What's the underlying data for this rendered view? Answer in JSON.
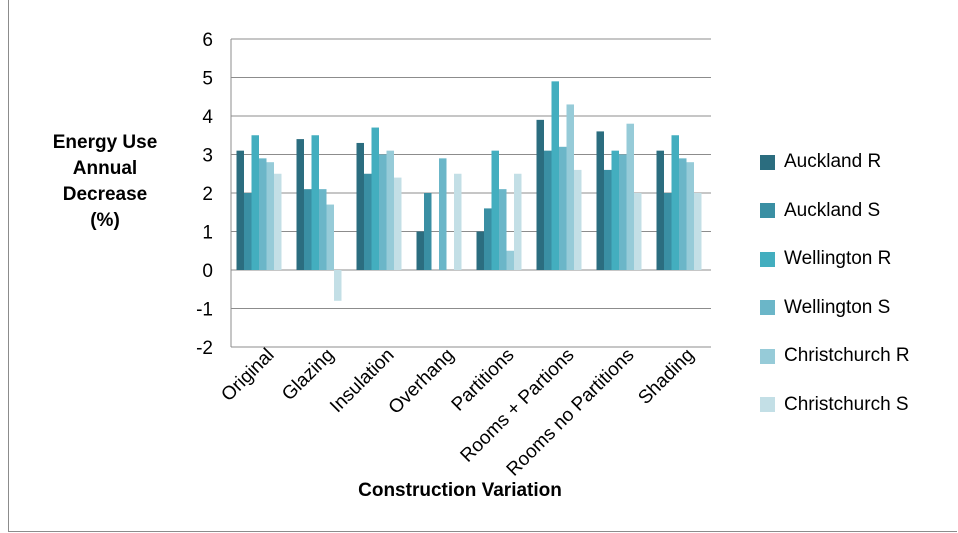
{
  "chart_data": {
    "type": "bar",
    "title": "",
    "xlabel": "Construction Variation",
    "ylabel_lines": [
      "Energy Use",
      "Annual",
      "Decrease",
      "(%)"
    ],
    "ylim": [
      -2,
      6
    ],
    "yticks": [
      "-2",
      "-1",
      "0",
      "1",
      "2",
      "3",
      "4",
      "5",
      "6"
    ],
    "grid": true,
    "legend_position": "right",
    "categories": [
      "Original",
      "Glazing",
      "Insulation",
      "Overhang",
      "Partitions",
      "Rooms + Partions",
      "Rooms no Partitions",
      "Shading"
    ],
    "series": [
      {
        "name": "Auckland R",
        "color": "#2b6d7f",
        "values": [
          3.1,
          3.4,
          3.3,
          1.0,
          1.0,
          3.9,
          3.6,
          3.1
        ]
      },
      {
        "name": "Auckland S",
        "color": "#3a8fa3",
        "values": [
          2.0,
          2.1,
          2.5,
          2.0,
          1.6,
          3.1,
          2.6,
          2.0
        ]
      },
      {
        "name": "Wellington R",
        "color": "#43aebf",
        "values": [
          3.5,
          3.5,
          3.7,
          0,
          3.1,
          4.9,
          3.1,
          3.5
        ]
      },
      {
        "name": "Wellington S",
        "color": "#6bb6c8",
        "values": [
          2.9,
          2.1,
          3.0,
          2.9,
          2.1,
          3.2,
          3.0,
          2.9
        ]
      },
      {
        "name": "Christchurch R",
        "color": "#96cbd8",
        "values": [
          2.8,
          1.7,
          3.1,
          0,
          0.5,
          4.3,
          3.8,
          2.8
        ]
      },
      {
        "name": "Christchurch S",
        "color": "#c3dfe6",
        "values": [
          2.5,
          -0.8,
          2.4,
          2.5,
          2.5,
          2.6,
          2.0,
          2.0
        ]
      }
    ]
  }
}
